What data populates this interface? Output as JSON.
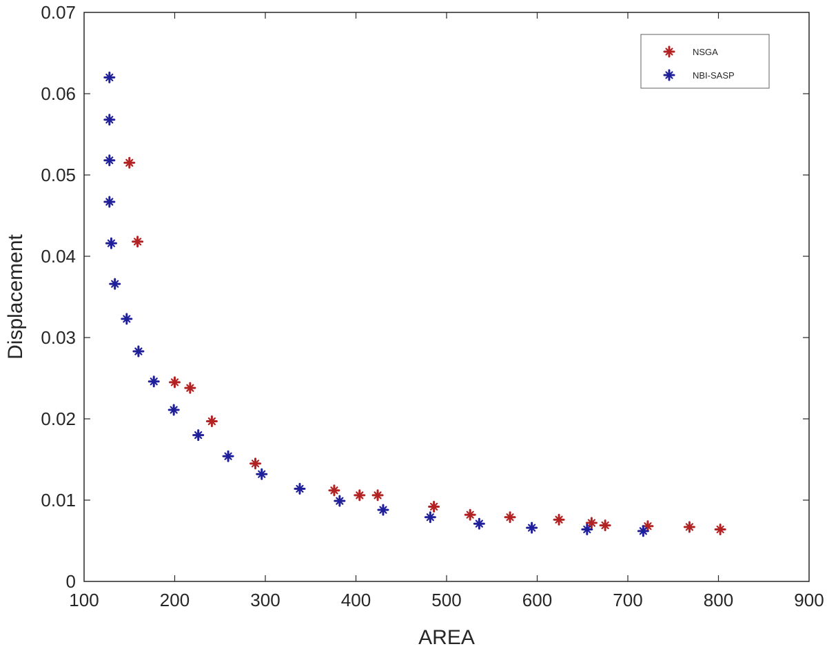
{
  "chart_data": {
    "type": "scatter",
    "title": "",
    "xlabel": "AREA",
    "ylabel": "Displacement",
    "xlim": [
      100,
      900
    ],
    "ylim": [
      0,
      0.07
    ],
    "xticks": [
      100,
      200,
      300,
      400,
      500,
      600,
      700,
      800,
      900
    ],
    "xtick_labels": [
      "100",
      "200",
      "300",
      "400",
      "500",
      "600",
      "700",
      "800",
      "900"
    ],
    "yticks": [
      0,
      0.01,
      0.02,
      0.03,
      0.04,
      0.05,
      0.06,
      0.07
    ],
    "ytick_labels": [
      "0",
      "0.01",
      "0.02",
      "0.03",
      "0.04",
      "0.05",
      "0.06",
      "0.07"
    ],
    "grid": false,
    "legend_position": "top-right",
    "series": [
      {
        "name": "NSGA",
        "color": "#b22222",
        "points": [
          [
            150,
            0.0515
          ],
          [
            159,
            0.0418
          ],
          [
            200,
            0.0245
          ],
          [
            217,
            0.0238
          ],
          [
            241,
            0.0197
          ],
          [
            289,
            0.0145
          ],
          [
            376,
            0.0112
          ],
          [
            404,
            0.0106
          ],
          [
            424,
            0.0106
          ],
          [
            486,
            0.0092
          ],
          [
            526,
            0.0082
          ],
          [
            570,
            0.0079
          ],
          [
            624,
            0.0076
          ],
          [
            660,
            0.0072
          ],
          [
            675,
            0.0069
          ],
          [
            722,
            0.0068
          ],
          [
            768,
            0.0067
          ],
          [
            802,
            0.0064
          ]
        ]
      },
      {
        "name": "NBI-SASP",
        "color": "#1f1f99",
        "points": [
          [
            128,
            0.062
          ],
          [
            128,
            0.0568
          ],
          [
            128,
            0.0518
          ],
          [
            128,
            0.0467
          ],
          [
            130,
            0.0416
          ],
          [
            134,
            0.0366
          ],
          [
            147,
            0.0323
          ],
          [
            160,
            0.0283
          ],
          [
            177,
            0.0246
          ],
          [
            199,
            0.0211
          ],
          [
            226,
            0.018
          ],
          [
            259,
            0.0154
          ],
          [
            296,
            0.0132
          ],
          [
            338,
            0.0114
          ],
          [
            382,
            0.0099
          ],
          [
            430,
            0.0088
          ],
          [
            482,
            0.0079
          ],
          [
            536,
            0.0071
          ],
          [
            594,
            0.0066
          ],
          [
            655,
            0.0064
          ],
          [
            717,
            0.0062
          ]
        ]
      }
    ]
  }
}
